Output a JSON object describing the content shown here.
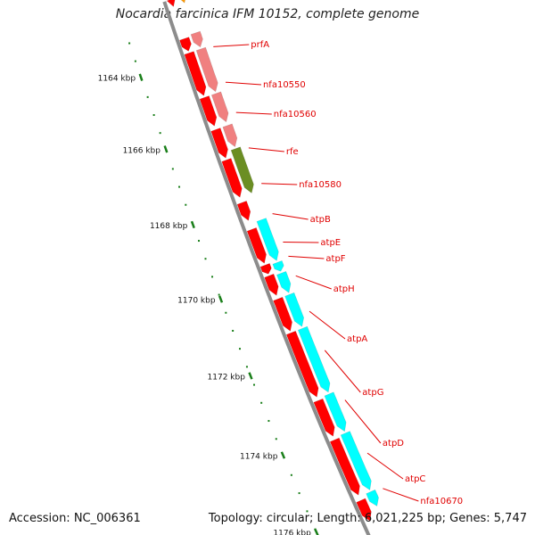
{
  "title": "Nocardia farcinica IFM 10152, complete genome",
  "footer": {
    "accession": "Accession: NC_006361",
    "topology": "Topology: circular; Length: 6,021,225 bp; Genes: 5,747"
  },
  "ticks": [
    "1164 kbp",
    "1166 kbp",
    "1168 kbp",
    "1170 kbp",
    "1172 kbp",
    "1174 kbp",
    "1176 kbp"
  ],
  "genes": [
    "prfA",
    "nfa10550",
    "nfa10560",
    "rfe",
    "nfa10580",
    "atpB",
    "atpE",
    "atpF",
    "atpH",
    "atpA",
    "atpG",
    "atpD",
    "atpC",
    "nfa10670"
  ],
  "colors": {
    "cds": "#ff0000",
    "prf_group": "#f08080",
    "rfe_group": "#6b8e23",
    "atp_group": "#00ffff",
    "orange": "#ff9900",
    "backbone": "#8c8c8c",
    "tick": "#1a7f1a",
    "label": "#e00000"
  }
}
